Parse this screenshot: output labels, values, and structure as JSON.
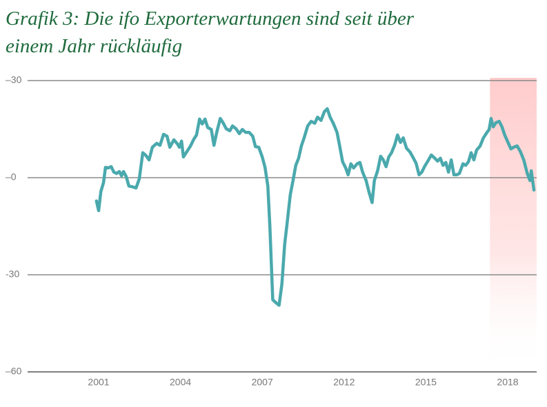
{
  "chart_data": {
    "type": "line",
    "title": "Grafik 3: Die ifo Exporterwartungen sind seit über einem Jahr rückläufig",
    "color": "#4aa9ad",
    "x": [
      2000.92,
      2001.0,
      2001.08,
      2001.18,
      2001.25,
      2001.35,
      2001.46,
      2001.56,
      2001.66,
      2001.76,
      2001.84,
      2001.91,
      2002.01,
      2002.11,
      2002.24,
      2002.37,
      2002.49,
      2002.62,
      2002.72,
      2002.85,
      2002.97,
      2003.13,
      2003.25,
      2003.38,
      2003.51,
      2003.61,
      2003.76,
      2003.89,
      2003.96,
      2004.04,
      2004.11,
      2004.24,
      2004.37,
      2004.49,
      2004.59,
      2004.7,
      2004.8,
      2004.9,
      2005.0,
      2005.13,
      2005.23,
      2005.33,
      2005.46,
      2005.56,
      2005.68,
      2005.81,
      2005.91,
      2006.04,
      2006.16,
      2006.27,
      2006.39,
      2006.52,
      2006.65,
      2006.75,
      2006.87,
      2007.0,
      2007.17,
      2007.34,
      2007.47,
      2007.64,
      2007.85,
      2008.03,
      2008.2,
      2008.37,
      2008.54,
      2008.71,
      2008.88,
      2009.05,
      2009.22,
      2009.39,
      2009.56,
      2009.78,
      2009.99,
      2010.21,
      2010.38,
      2010.59,
      2010.8,
      2010.97,
      2011.15,
      2011.36,
      2011.57,
      2011.74,
      2011.91,
      2012.05,
      2012.15,
      2012.25,
      2012.35,
      2012.48,
      2012.58,
      2012.68,
      2012.81,
      2012.91,
      2013.03,
      2013.11,
      2013.23,
      2013.34,
      2013.44,
      2013.54,
      2013.64,
      2013.74,
      2013.86,
      2013.96,
      2014.07,
      2014.17,
      2014.29,
      2014.42,
      2014.52,
      2014.64,
      2014.75,
      2014.85,
      2014.95,
      2015.07,
      2015.2,
      2015.33,
      2015.43,
      2015.53,
      2015.63,
      2015.73,
      2015.83,
      2015.93,
      2016.03,
      2016.13,
      2016.23,
      2016.36,
      2016.46,
      2016.56,
      2016.66,
      2016.76,
      2016.86,
      2016.99,
      2017.11,
      2017.21,
      2017.32,
      2017.39,
      2017.47,
      2017.57,
      2017.69,
      2017.79,
      2017.89,
      2018.0,
      2018.12,
      2018.22,
      2018.35,
      2018.47,
      2018.6,
      2018.73,
      2018.83,
      2018.88,
      2018.98
    ],
    "values": [
      -7.2,
      -10.2,
      -4.3,
      -1.5,
      3.2,
      3.0,
      3.4,
      1.7,
      1.3,
      1.9,
      0.6,
      1.9,
      0.4,
      -2.6,
      -2.8,
      -3.2,
      -0.4,
      7.7,
      7.0,
      5.5,
      9.4,
      10.6,
      10.0,
      13.4,
      12.8,
      9.4,
      11.7,
      10.4,
      9.4,
      11.3,
      6.4,
      8.1,
      9.8,
      11.9,
      13.2,
      18.1,
      16.6,
      18.1,
      15.5,
      14.9,
      10.0,
      14.0,
      18.3,
      17.0,
      15.1,
      14.5,
      16.0,
      15.1,
      13.6,
      14.9,
      14.0,
      14.0,
      12.8,
      9.6,
      9.4,
      6.4,
      3.2,
      -2.6,
      -15.3,
      -37.7,
      -38.7,
      -39.4,
      -32.8,
      -20.6,
      -13.2,
      -5.3,
      -0.9,
      3.8,
      6.0,
      9.8,
      12.3,
      16.0,
      17.4,
      16.8,
      18.7,
      17.7,
      20.4,
      21.3,
      18.7,
      16.6,
      14.0,
      9.6,
      4.9,
      3.2,
      0.9,
      4.3,
      3.0,
      4.3,
      4.7,
      1.7,
      -0.9,
      -4.3,
      -7.7,
      -0.9,
      2.1,
      6.6,
      5.5,
      3.4,
      6.4,
      7.7,
      10.2,
      13.2,
      10.9,
      12.3,
      9.1,
      7.9,
      6.4,
      4.5,
      0.9,
      1.7,
      3.4,
      5.1,
      7.0,
      6.0,
      5.1,
      6.0,
      3.8,
      4.7,
      1.7,
      5.5,
      0.9,
      0.9,
      1.3,
      4.3,
      3.8,
      4.9,
      7.7,
      5.5,
      8.5,
      9.8,
      12.3,
      13.6,
      14.9,
      18.3,
      15.7,
      17.0,
      17.4,
      15.7,
      13.2,
      11.1,
      8.9,
      9.4,
      9.8,
      8.1,
      5.5,
      1.3,
      -0.9,
      2.1,
      -3.8
    ],
    "xlim": [
      1998.65,
      2019.08
    ],
    "xticks": [
      2001,
      2004,
      2007,
      2012,
      2015,
      2018
    ],
    "ylim": [
      -60,
      30
    ],
    "yticks": [
      {
        "value": 30,
        "label": "–30"
      },
      {
        "value": 0,
        "label": "–0"
      },
      -30,
      {
        "value": -60,
        "label": "–60"
      }
    ],
    "grid": true,
    "shaded_range": [
      2017.35,
      2019.08
    ]
  }
}
